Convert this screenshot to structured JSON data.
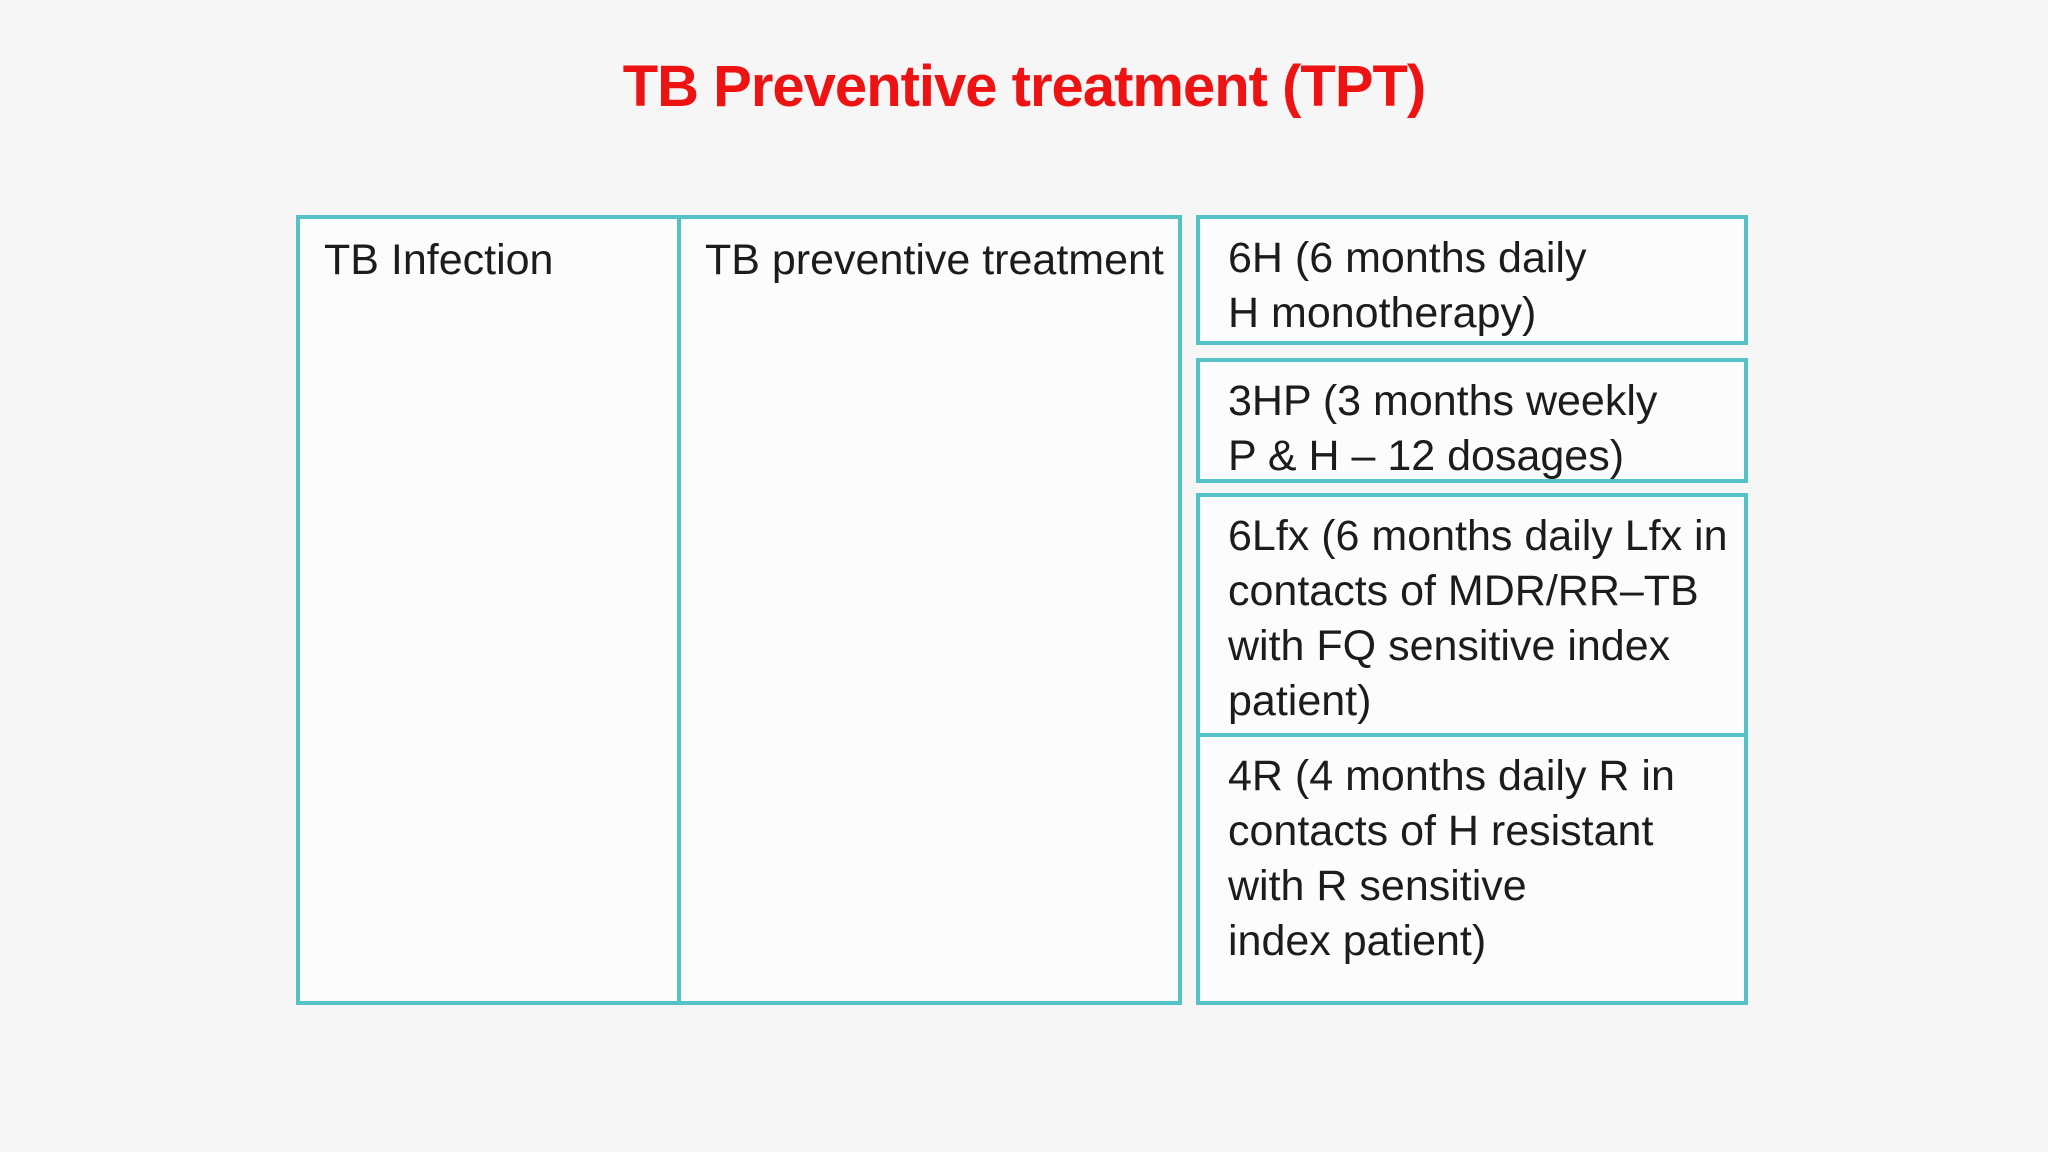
{
  "title": "TB Preventive treatment (TPT)",
  "colors": {
    "title_red": "#ee1313",
    "border_teal": "#55c2c6",
    "cell_background": "#fafcfd",
    "page_background": "#f7f6f6",
    "text": "#1c1c1c"
  },
  "table": {
    "col1_header": "TB Infection",
    "col2_header": "TB preventive treatment",
    "regimens": [
      {
        "id": "6H",
        "label": "6H (6 months daily\nH monotherapy)"
      },
      {
        "id": "3HP",
        "label": "3HP (3 months weekly\nP & H – 12 dosages)"
      },
      {
        "id": "6Lfx",
        "label": "6Lfx (6 months daily Lfx in\ncontacts of MDR/RR–TB\nwith FQ sensitive index\npatient)"
      },
      {
        "id": "4R",
        "label": "4R (4 months daily R in\ncontacts of H resistant\nwith R sensitive\nindex patient)"
      }
    ]
  }
}
